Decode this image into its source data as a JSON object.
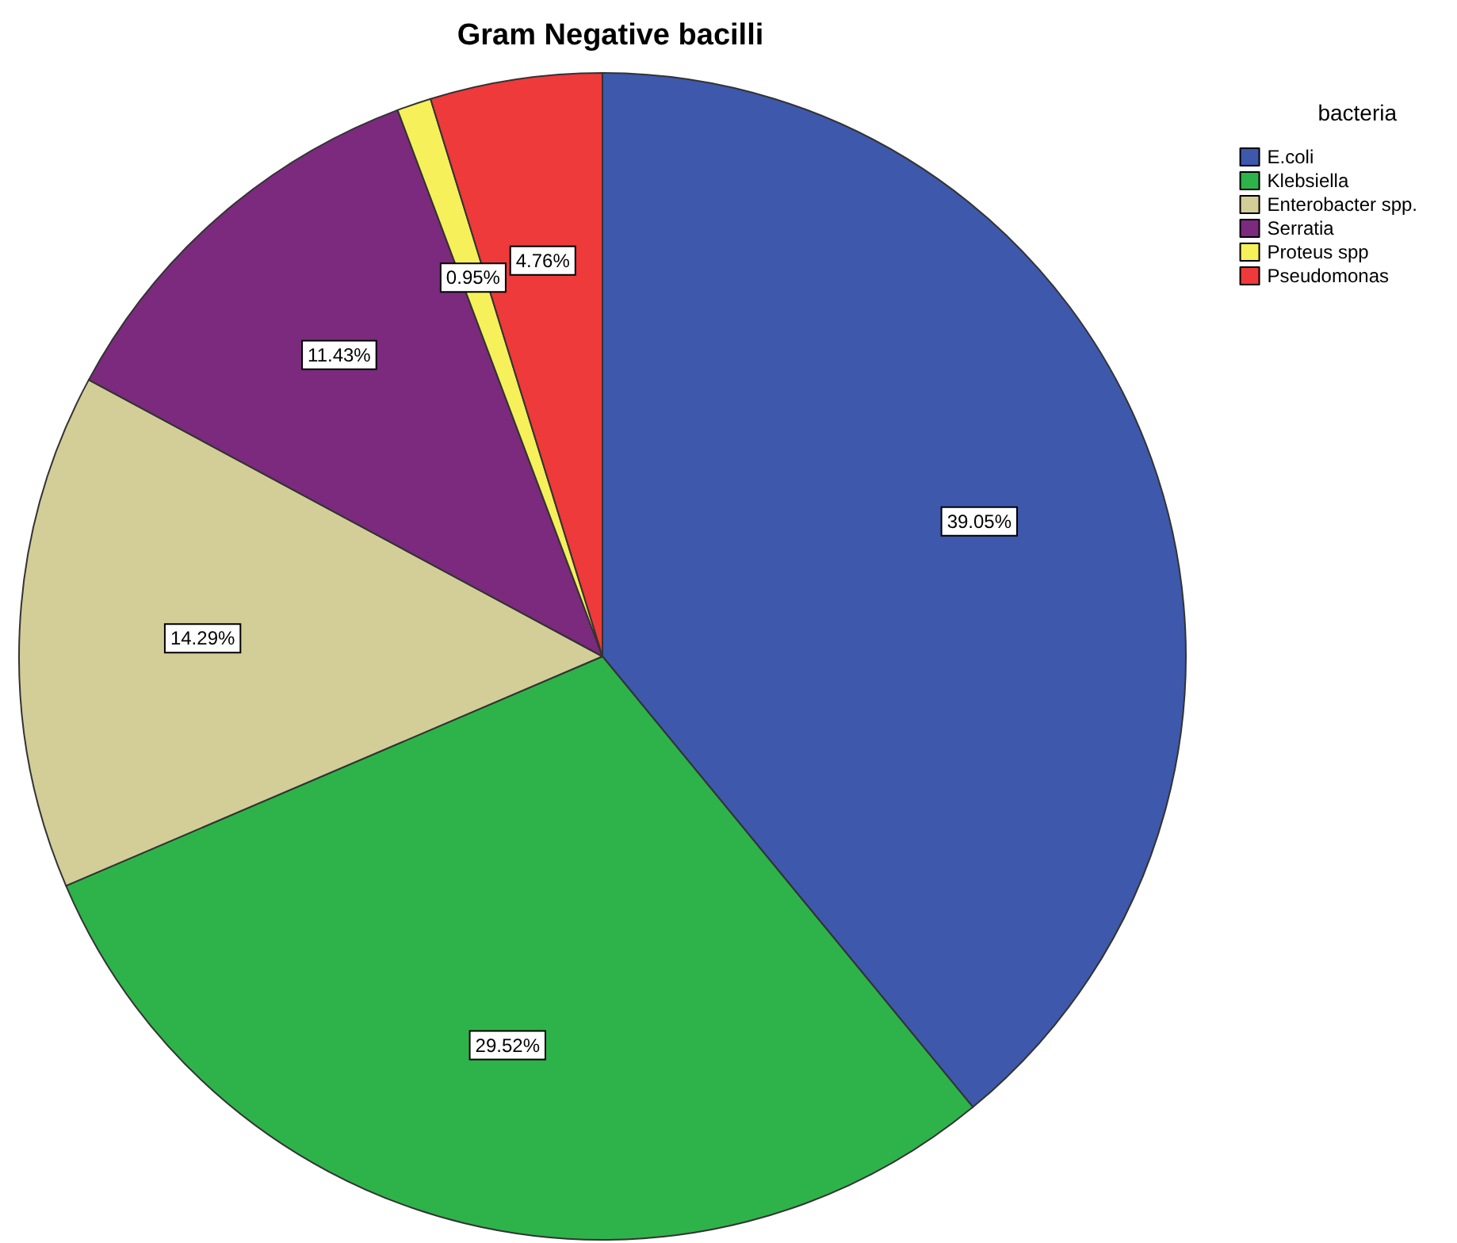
{
  "chart_data": {
    "type": "pie",
    "title": "Gram Negative bacilli",
    "legend_title": "bacteria",
    "legend": "top right",
    "categories": [
      "E.coli",
      "Klebsiella",
      "Enterobacter spp.",
      "Serratia",
      "Proteus spp",
      "Pseudomonas"
    ],
    "values": [
      39.05,
      29.52,
      14.29,
      11.43,
      0.95,
      4.76
    ],
    "value_labels": [
      "39.05%",
      "29.52%",
      "14.29%",
      "11.43%",
      "0.95%",
      "4.76%"
    ],
    "colors": [
      "#3e58ac",
      "#2db34a",
      "#d3cd98",
      "#7b2a7e",
      "#f6f05a",
      "#ee3a3a"
    ]
  }
}
